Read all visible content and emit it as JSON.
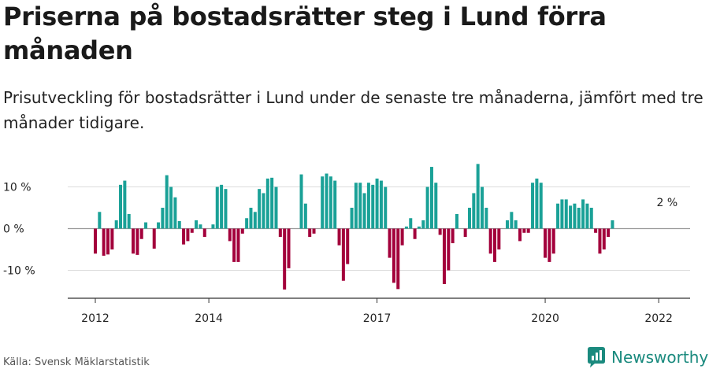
{
  "title": "Priserna på bostadsrätter steg i Lund förra månaden",
  "subtitle": "Prisutveckling för bostadsrätter i Lund under de senaste tre månaderna, jämfört med tre månader tidigare.",
  "source": "Källa: Svensk Mäklarstatistik",
  "brand": "Newsworthy",
  "colors": {
    "positive": "#1aa197",
    "negative": "#a3003b",
    "brand": "#1a8a7e"
  },
  "chart_data": {
    "type": "bar",
    "y_unit": "%",
    "ylim": [
      -17,
      18
    ],
    "yticks": [
      {
        "value": 10,
        "label": "10 %"
      },
      {
        "value": 0,
        "label": "0 %"
      },
      {
        "value": -10,
        "label": "-10 %"
      }
    ],
    "xticks": [
      {
        "index": 0,
        "label": "2012"
      },
      {
        "index": 27,
        "label": "2014"
      },
      {
        "index": 67,
        "label": "2017"
      },
      {
        "index": 107,
        "label": "2020"
      },
      {
        "index": 134,
        "label": "2022"
      }
    ],
    "annotation": {
      "index": 136,
      "label": "2 %"
    },
    "values": [
      -6,
      4,
      -6.5,
      -6.2,
      -5,
      2,
      10.5,
      11.5,
      3.5,
      -6,
      -6.3,
      -2.5,
      1.5,
      0,
      -4.8,
      1.5,
      5,
      12.8,
      10,
      7.5,
      1.8,
      -3.8,
      -3,
      -1,
      2,
      1,
      -2,
      0,
      1,
      10,
      10.5,
      9.5,
      -3,
      -8,
      -8,
      -1.2,
      2.5,
      5,
      4,
      9.5,
      8.5,
      12,
      12.2,
      10,
      -2,
      -14.6,
      -9.5,
      0,
      0,
      13,
      6,
      -2,
      -1.2,
      0,
      12.5,
      13.2,
      12.5,
      11.5,
      -4,
      -12.5,
      -8.5,
      5,
      11,
      11,
      8.5,
      11,
      10.5,
      12,
      11.5,
      10,
      -7,
      -13,
      -14.5,
      -4,
      0.5,
      2.5,
      -2.5,
      0.5,
      2,
      10,
      14.8,
      11,
      -1.5,
      -13.3,
      -10,
      -3.5,
      3.5,
      0,
      -2,
      5,
      8.5,
      15.5,
      10,
      5,
      -6,
      -8,
      -5,
      0,
      2,
      4,
      2,
      -3,
      -1,
      -1,
      11,
      12,
      11,
      -7,
      -8,
      -6,
      6,
      7,
      7,
      5.5,
      6,
      5,
      7,
      6,
      5,
      -1,
      -6,
      -5,
      -2,
      2
    ]
  }
}
